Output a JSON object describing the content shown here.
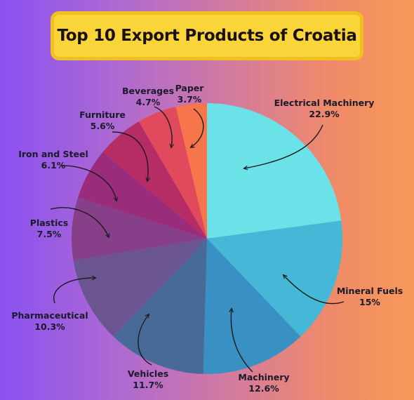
{
  "chart_data": {
    "type": "pie",
    "title": "Top 10 Export Products of Croatia",
    "categories": [
      "Electrical Machinery",
      "Mineral Fuels",
      "Machinery",
      "Vehicles",
      "Pharmaceutical",
      "Plastics",
      "Iron and Steel",
      "Furniture",
      "Beverages",
      "Paper"
    ],
    "values": [
      22.9,
      15,
      12.6,
      11.7,
      10.3,
      7.5,
      6.1,
      5.6,
      4.7,
      3.7
    ],
    "value_labels": [
      "22.9%",
      "15%",
      "12.6%",
      "11.7%",
      "10.3%",
      "7.5%",
      "6.1%",
      "5.6%",
      "4.7%",
      "3.7%"
    ],
    "colors": [
      "#6ae2e8",
      "#44b8d6",
      "#3990c2",
      "#486a98",
      "#6a5590",
      "#873f89",
      "#9a2c7c",
      "#b62c64",
      "#e04a5c",
      "#f7754a"
    ],
    "start_angle_deg": 0,
    "direction": "clockwise",
    "legend": "none",
    "grid": false
  }
}
